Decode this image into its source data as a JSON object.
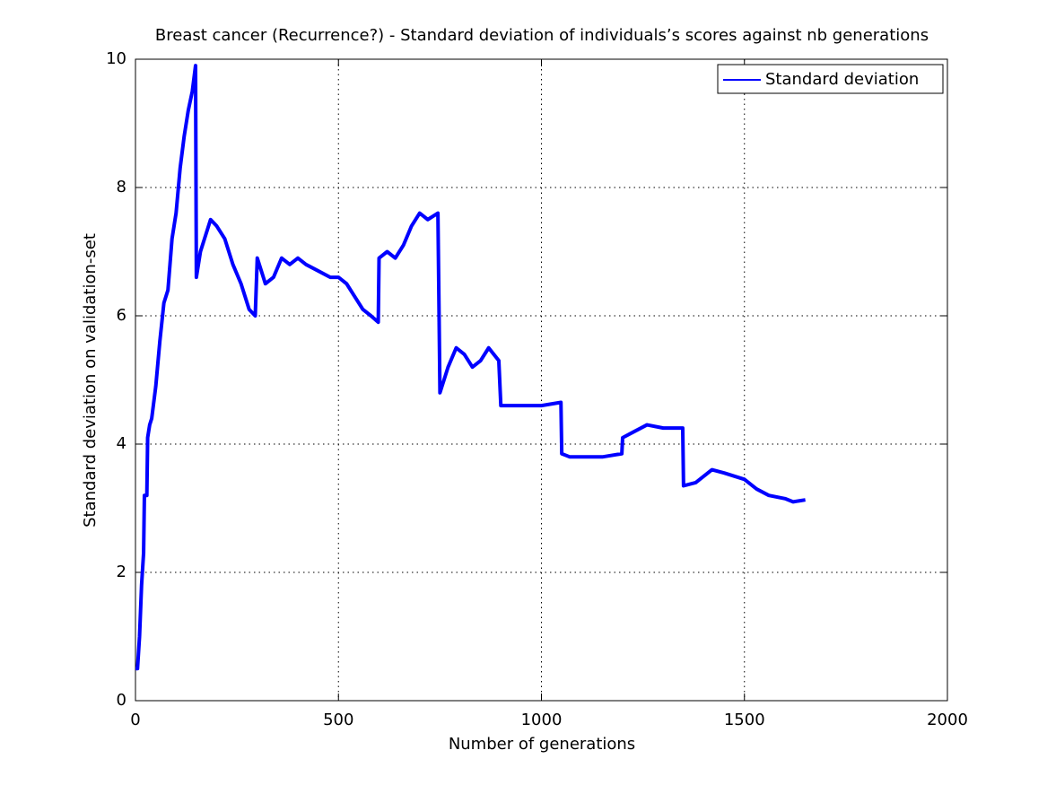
{
  "chart_data": {
    "type": "line",
    "title": "Breast cancer (Recurrence?) - Standard deviation of individuals’s scores against nb generations",
    "xlabel": "Number of generations",
    "ylabel": "Standard deviation on validation-set",
    "x": [
      0,
      5,
      10,
      15,
      20,
      22,
      28,
      30,
      35,
      40,
      50,
      60,
      70,
      80,
      90,
      100,
      110,
      120,
      130,
      140,
      148,
      150,
      160,
      170,
      185,
      200,
      220,
      240,
      260,
      280,
      295,
      300,
      320,
      340,
      360,
      380,
      400,
      420,
      450,
      480,
      500,
      520,
      540,
      560,
      580,
      598,
      600,
      620,
      640,
      660,
      680,
      700,
      720,
      745,
      750,
      770,
      790,
      810,
      830,
      850,
      870,
      895,
      900,
      920,
      950,
      980,
      1000,
      1048,
      1050,
      1070,
      1100,
      1150,
      1198,
      1200,
      1230,
      1260,
      1300,
      1348,
      1350,
      1380,
      1420,
      1450,
      1500,
      1530,
      1560,
      1600,
      1620,
      1650
    ],
    "series": [
      {
        "name": "Standard deviation",
        "color": "#0000ff",
        "values": [
          0.5,
          0.5,
          1.0,
          1.8,
          2.3,
          3.2,
          3.2,
          4.1,
          4.3,
          4.4,
          4.9,
          5.6,
          6.2,
          6.4,
          7.2,
          7.6,
          8.3,
          8.8,
          9.2,
          9.5,
          9.9,
          6.6,
          7.0,
          7.2,
          7.5,
          7.4,
          7.2,
          6.8,
          6.5,
          6.1,
          6.0,
          6.9,
          6.5,
          6.6,
          6.9,
          6.8,
          6.9,
          6.8,
          6.7,
          6.6,
          6.6,
          6.5,
          6.3,
          6.1,
          6.0,
          5.9,
          6.9,
          7.0,
          6.9,
          7.1,
          7.4,
          7.6,
          7.5,
          7.6,
          4.8,
          5.2,
          5.5,
          5.4,
          5.2,
          5.3,
          5.5,
          5.3,
          4.6,
          4.6,
          4.6,
          4.6,
          4.6,
          4.65,
          3.85,
          3.8,
          3.8,
          3.8,
          3.85,
          4.1,
          4.2,
          4.3,
          4.25,
          4.25,
          3.35,
          3.4,
          3.6,
          3.55,
          3.45,
          3.3,
          3.2,
          3.15,
          3.1,
          3.13
        ]
      }
    ],
    "xlim": [
      0,
      2000
    ],
    "xticks": [
      0,
      500,
      1000,
      1500,
      2000
    ],
    "ylim": [
      0,
      10
    ],
    "yticks": [
      0,
      2,
      4,
      6,
      8,
      10
    ],
    "grid": true,
    "legend": "northeast"
  }
}
